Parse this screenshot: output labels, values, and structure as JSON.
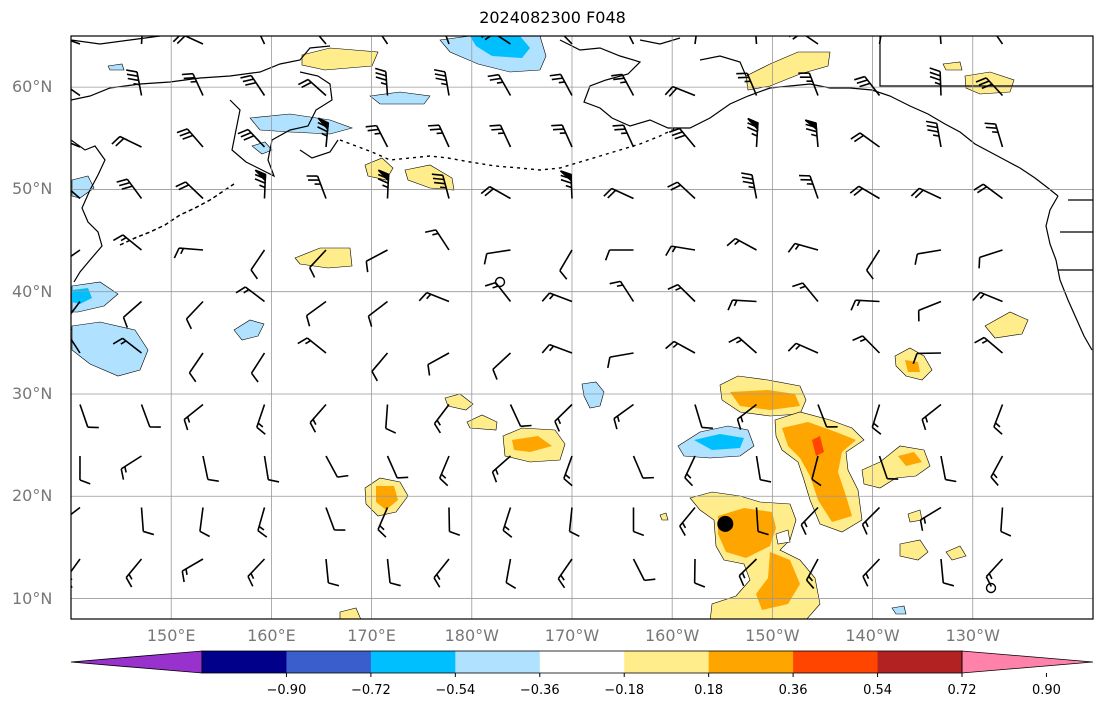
{
  "title": "2024082300 F048",
  "lat_labels": [
    "60°N",
    "50°N",
    "40°N",
    "30°N",
    "20°N",
    "10°N"
  ],
  "lat_values": [
    60,
    50,
    40,
    30,
    20,
    10
  ],
  "lon_labels": [
    "150°E",
    "160°E",
    "170°E",
    "180°W",
    "170°W",
    "160°W",
    "150°W",
    "140°W",
    "130°W"
  ],
  "lon_values": [
    150,
    160,
    170,
    180,
    190,
    200,
    210,
    220,
    230
  ],
  "map_extent": {
    "lon_min": 140,
    "lon_max": 242,
    "lat_min": 8,
    "lat_max": 65
  },
  "colorbar": {
    "colors": [
      "#9932cc",
      "#00008b",
      "#3a5fcd",
      "#00bfff",
      "#b0e2ff",
      "#ffffff",
      "#ffec8b",
      "#ffa500",
      "#ff4500",
      "#b22222",
      "#ff82ab"
    ],
    "labels": [
      "−0.90",
      "−0.72",
      "−0.54",
      "−0.36",
      "−0.18",
      "0.18",
      "0.36",
      "0.54",
      "0.72",
      "0.90"
    ],
    "extend": "both"
  },
  "colors": {
    "coast": "#000000",
    "grid": "#999999",
    "barb": "#000000"
  },
  "storm_marker": {
    "lon": 205.3,
    "lat": 17.3
  }
}
